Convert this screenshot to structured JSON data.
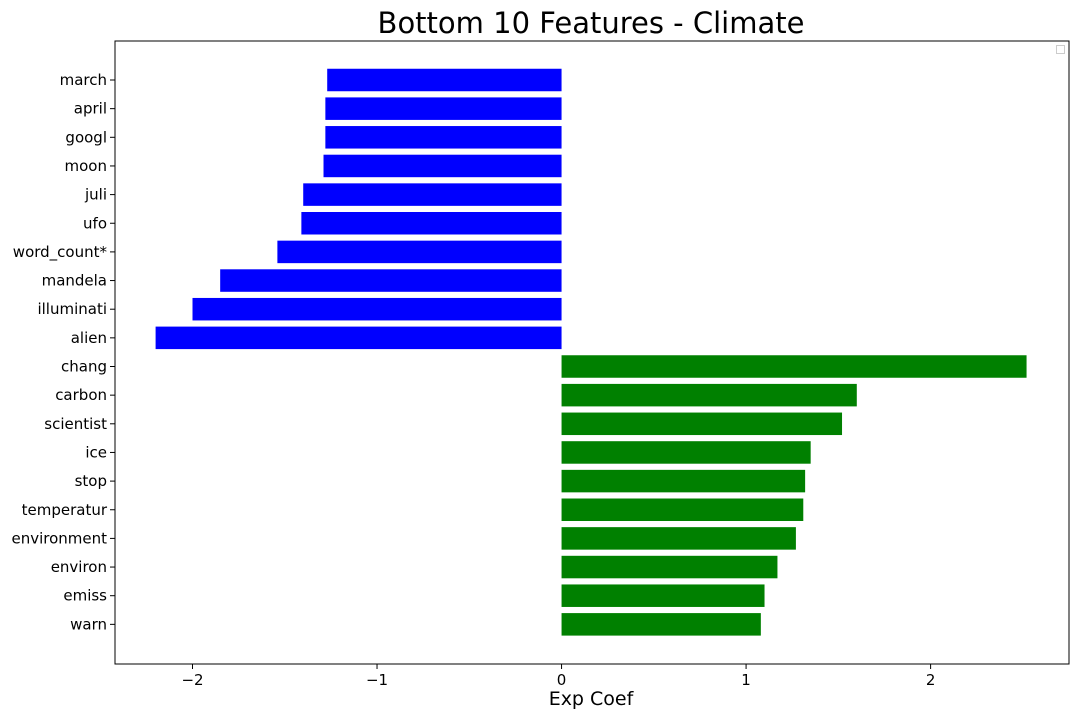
{
  "chart_data": {
    "type": "bar",
    "orientation": "horizontal",
    "title": "Bottom 10 Features - Climate",
    "xlabel": "Exp Coef",
    "ylabel": "",
    "xlim": [
      -2.42,
      2.75
    ],
    "xticks": [
      -2,
      -1,
      0,
      1,
      2
    ],
    "xtick_labels": [
      "−2",
      "−1",
      "0",
      "1",
      "2"
    ],
    "grid": false,
    "legend": "top-right (empty)",
    "categories": [
      "march",
      "april",
      "googl",
      "moon",
      "juli",
      "ufo",
      "word_count*",
      "mandela",
      "illuminati",
      "alien",
      "chang",
      "carbon",
      "scientist",
      "ice",
      "stop",
      "temperatur",
      "environment",
      "environ",
      "emiss",
      "warn"
    ],
    "values": [
      -1.27,
      -1.28,
      -1.28,
      -1.29,
      -1.4,
      -1.41,
      -1.54,
      -1.85,
      -2.0,
      -2.2,
      2.52,
      1.6,
      1.52,
      1.35,
      1.32,
      1.31,
      1.27,
      1.17,
      1.1,
      1.08
    ],
    "colors": {
      "negative": "#0000ff",
      "positive": "#008000"
    }
  }
}
